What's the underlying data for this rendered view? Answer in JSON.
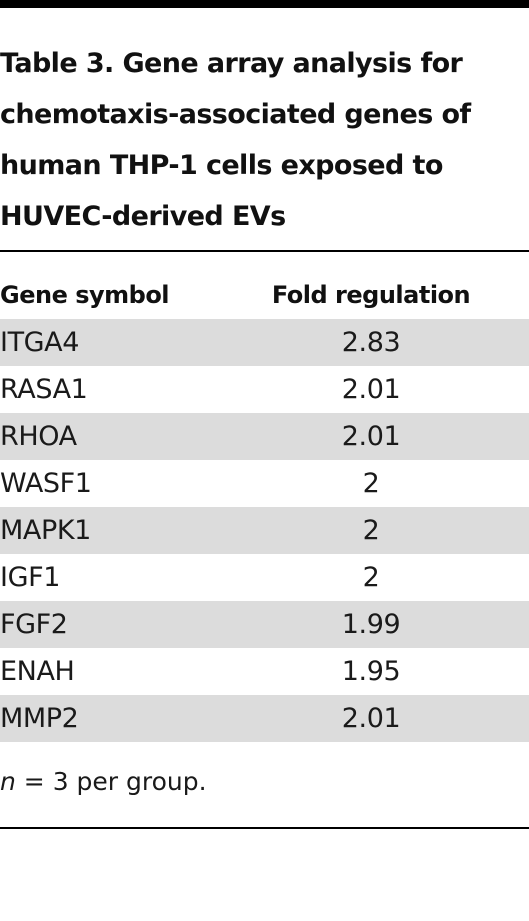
{
  "table": {
    "title": "Table 3. Gene array analysis for\nchemotaxis-associated genes of\nhuman THP-1 cells exposed to\nHUVEC-derived EVs",
    "columns": [
      "Gene symbol",
      "Fold regulation"
    ],
    "rows": [
      [
        "ITGA4",
        "2.83"
      ],
      [
        "RASA1",
        "2.01"
      ],
      [
        "RHOA",
        "2.01"
      ],
      [
        "WASF1",
        "2"
      ],
      [
        "MAPK1",
        "2"
      ],
      [
        "IGF1",
        "2"
      ],
      [
        "FGF2",
        "1.99"
      ],
      [
        "ENAH",
        "1.95"
      ],
      [
        "MMP2",
        "2.01"
      ]
    ],
    "footnote": {
      "variable": "n",
      "text": " = 3 per group."
    }
  },
  "colors": {
    "rule": "#000000",
    "row_shade": "#dcdcdc",
    "text": "#1a1a1a"
  }
}
